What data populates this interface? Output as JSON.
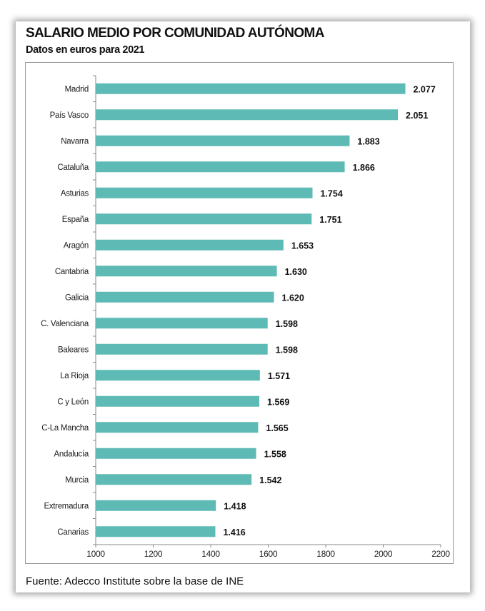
{
  "chart_data": {
    "type": "bar",
    "orientation": "horizontal",
    "title": "SALARIO MEDIO POR COMUNIDAD AUTÓNOMA",
    "subtitle": "Datos en euros para 2021",
    "categories": [
      "Madrid",
      "País Vasco",
      "Navarra",
      "Cataluña",
      "Asturias",
      "España",
      "Aragón",
      "Cantabria",
      "Galicia",
      "C. Valenciana",
      "Baleares",
      "La Rioja",
      "C y León",
      "C-La Mancha",
      "Andalucía",
      "Murcia",
      "Extremadura",
      "Canarias"
    ],
    "values": [
      2077,
      2051,
      1883,
      1866,
      1754,
      1751,
      1653,
      1630,
      1620,
      1598,
      1598,
      1571,
      1569,
      1565,
      1558,
      1542,
      1418,
      1416
    ],
    "data_labels": [
      "2.077",
      "2.051",
      "1.883",
      "1.866",
      "1.754",
      "1.751",
      "1.653",
      "1.630",
      "1.620",
      "1.598",
      "1.598",
      "1.571",
      "1.569",
      "1.565",
      "1.558",
      "1.542",
      "1.418",
      "1.416"
    ],
    "xlim": [
      1000,
      2200
    ],
    "xticks": [
      1000,
      1200,
      1400,
      1600,
      1800,
      2000,
      2200
    ],
    "grid": false,
    "bar_color": "#5ebab4",
    "source": "Fuente: Adecco Institute sobre la base de INE"
  }
}
